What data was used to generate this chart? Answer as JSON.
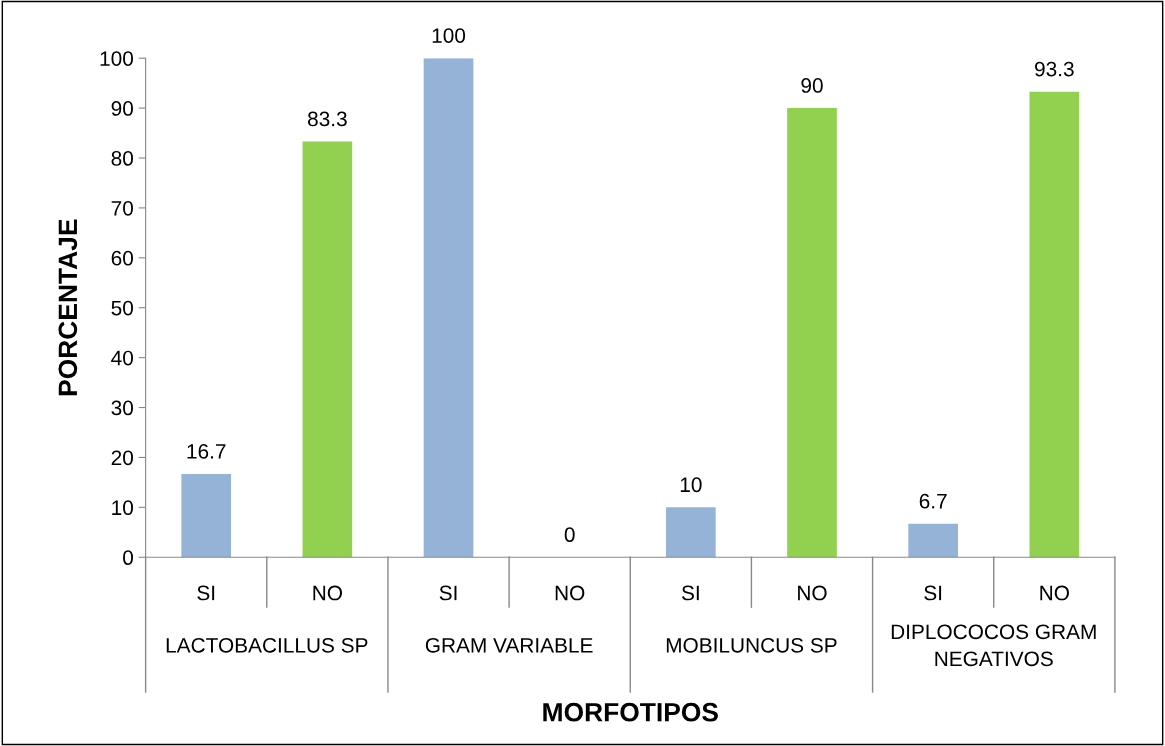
{
  "chart_data": {
    "type": "bar",
    "categories": [
      "SI",
      "NO",
      "SI",
      "NO",
      "SI",
      "NO",
      "SI",
      "NO"
    ],
    "values": [
      16.7,
      83.3,
      100,
      0,
      10,
      90,
      6.7,
      93.3
    ],
    "colors": [
      "#95b3d7",
      "#92d050",
      "#95b3d7",
      "#92d050",
      "#95b3d7",
      "#92d050",
      "#95b3d7",
      "#92d050"
    ],
    "annotations": [
      "LACTOBACILLUS SP",
      "GRAM VARIABLE",
      "MOBILUNCUS SP",
      "DIPLOCOCOS GRAM\nNEGATIVOS"
    ],
    "xlabel": "MORFOTIPOS",
    "ylabel": "PORCENTAJE",
    "ylim": [
      0,
      100
    ],
    "yticks": [
      0,
      10,
      20,
      30,
      40,
      50,
      60,
      70,
      80,
      90,
      100
    ],
    "data_labels": true,
    "grid": false,
    "legend": false
  }
}
